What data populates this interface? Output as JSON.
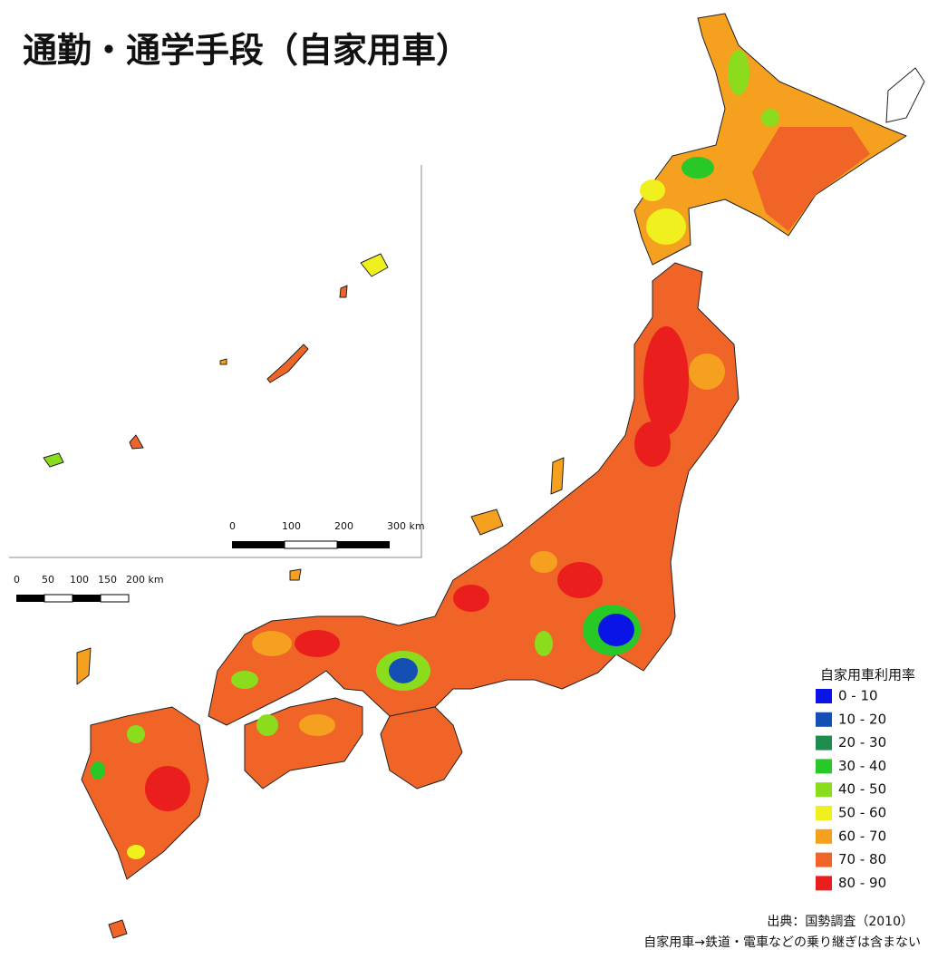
{
  "title": "通勤・通学手段（自家用車）",
  "legend": {
    "title": "自家用車利用率",
    "items": [
      {
        "label": "0 - 10",
        "color": "#0a14e6"
      },
      {
        "label": "10 - 20",
        "color": "#1450b4"
      },
      {
        "label": "20 - 30",
        "color": "#1e8c50"
      },
      {
        "label": "30 - 40",
        "color": "#28c828"
      },
      {
        "label": "40 - 50",
        "color": "#8cdc1e"
      },
      {
        "label": "50 - 60",
        "color": "#f0f01e"
      },
      {
        "label": "60 - 70",
        "color": "#f5a01e"
      },
      {
        "label": "70 - 80",
        "color": "#f06428"
      },
      {
        "label": "80 - 90",
        "color": "#eb1e1e"
      }
    ]
  },
  "scale_bars": [
    {
      "labels": [
        "0",
        "100",
        "200",
        "300 km"
      ]
    },
    {
      "labels": [
        "0",
        "50",
        "100",
        "150",
        "200 km"
      ]
    }
  ],
  "source": "出典：国勢調査（2010）",
  "note": "自家用車→鉄道・電車などの乗り継ぎは含まない"
}
